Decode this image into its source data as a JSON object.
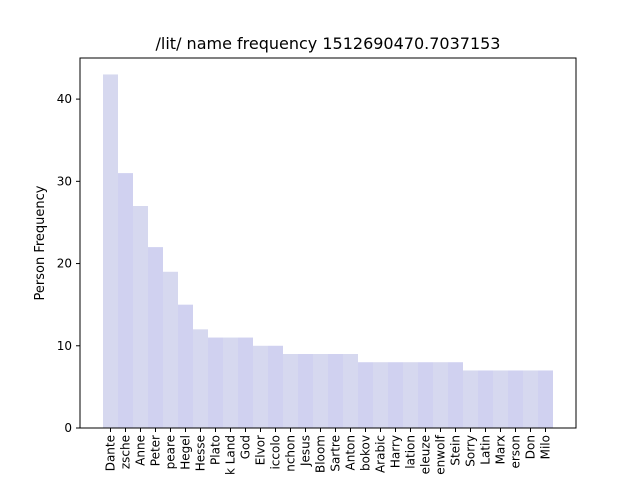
{
  "chart_data": {
    "type": "bar",
    "title": "/lit/ name frequency 1512690470.7037153",
    "xlabel": "",
    "ylabel": "Person Frequency",
    "ylim": [
      0,
      45
    ],
    "yticks": [
      0,
      10,
      20,
      30,
      40
    ],
    "grid": false,
    "categories": [
      "Dante",
      "zsche",
      "Anne",
      "Peter",
      "peare",
      "Hegel",
      "Hesse",
      "Plato",
      "k Land",
      "God",
      "Elvor",
      "iccolo",
      "nchon",
      "Jesus",
      "Bloom",
      "Sartre",
      "Anton",
      "bokov",
      "Arabic",
      "Harry",
      "lation",
      "eleuze",
      "enwolf",
      "Stein",
      "Sorry",
      "Latin",
      "Marx",
      "erson",
      "Don",
      "Milo"
    ],
    "values": [
      43,
      31,
      27,
      22,
      19,
      15,
      12,
      11,
      11,
      11,
      10,
      10,
      9,
      9,
      9,
      9,
      9,
      8,
      8,
      8,
      8,
      8,
      8,
      8,
      7,
      7,
      7,
      7,
      7,
      7
    ],
    "bar_colors": [
      "#d6d8ef",
      "#d0d1f0"
    ]
  }
}
